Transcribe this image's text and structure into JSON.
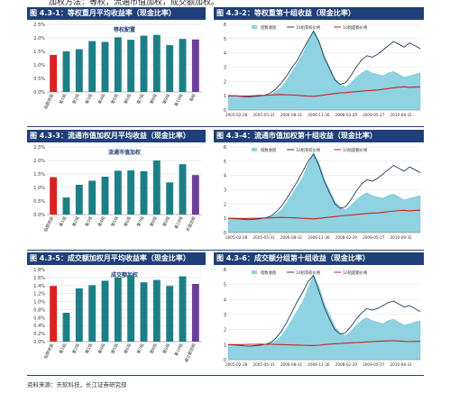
{
  "header_text": "加权方法：等权，流通市值加权，成交额加权。",
  "footer": "资料来源：天软科技，长江证券研究部",
  "legend_labels": {
    "index": "指数收盘",
    "top10_equal": "10组等权价格",
    "top10_excess": "10组超额价格"
  },
  "colors": {
    "bar_teal": "#1d7f86",
    "bar_red": "#e02020",
    "bar_purple": "#6a3d9a",
    "title_bg": "#1f3f78",
    "area_fill": "#8fd3e2",
    "line_dark": "#233b5a",
    "line_red": "#cc1f1f"
  },
  "x_date_ticks": [
    "2005-02-28",
    "2005-05-31",
    "2006-08-31",
    "2006-11-30",
    "2008-02-29",
    "2009-05-27",
    "2010-08-31"
  ],
  "chart_data": [
    {
      "id": "c1",
      "type": "bar",
      "title": "图 4.3-1：等权重月平均收益率（现金比率）",
      "inner_title": "等权配置",
      "ylim": [
        0,
        0.025
      ],
      "yticks": [
        "0.0%",
        "0.5%",
        "1.0%",
        "1.5%",
        "2.0%",
        "2.5%"
      ],
      "categories": [
        "指数收益",
        "第1组",
        "第2组",
        "第3组",
        "第4组",
        "第5组",
        "第6组",
        "第7组",
        "第8组",
        "第9组",
        "第10组",
        "等权"
      ],
      "values": [
        0.0137,
        0.015,
        0.0158,
        0.0188,
        0.0185,
        0.0202,
        0.0193,
        0.0208,
        0.0211,
        0.0173,
        0.0196,
        0.0194
      ],
      "bar_colors": [
        "red",
        "teal",
        "teal",
        "teal",
        "teal",
        "teal",
        "teal",
        "teal",
        "teal",
        "teal",
        "teal",
        "purple"
      ]
    },
    {
      "id": "c2",
      "type": "area_line",
      "title": "图 4.3-2：等权重第十组收益（现金比率）",
      "ylim": [
        0,
        6
      ],
      "yticks": [
        "0",
        "1",
        "2",
        "3",
        "4",
        "5",
        "6"
      ],
      "index": [
        1.0,
        0.98,
        0.95,
        0.9,
        0.88,
        0.92,
        0.95,
        1.0,
        1.1,
        1.3,
        1.6,
        2.1,
        2.7,
        3.3,
        3.9,
        4.8,
        5.6,
        4.9,
        3.8,
        3.0,
        2.2,
        1.8,
        1.6,
        1.9,
        2.3,
        2.6,
        2.8,
        2.6,
        2.5,
        2.4,
        2.6,
        2.7,
        2.5,
        2.3,
        2.4,
        2.5,
        2.6
      ],
      "top10_equal": [
        1.0,
        0.98,
        0.97,
        0.93,
        0.92,
        0.95,
        0.98,
        1.05,
        1.2,
        1.5,
        1.9,
        2.4,
        3.0,
        3.5,
        4.2,
        4.9,
        5.5,
        4.8,
        3.7,
        2.9,
        2.1,
        1.8,
        1.9,
        2.4,
        3.0,
        3.5,
        3.8,
        3.7,
        3.9,
        4.2,
        4.5,
        4.8,
        4.6,
        4.4,
        4.7,
        4.5,
        4.3
      ],
      "top10_excess": [
        1.0,
        1.0,
        0.98,
        0.97,
        0.98,
        1.0,
        1.02,
        1.03,
        1.05,
        1.07,
        1.08,
        1.06,
        1.05,
        1.03,
        1.0,
        0.97,
        0.95,
        1.0,
        1.05,
        1.1,
        1.15,
        1.2,
        1.22,
        1.25,
        1.28,
        1.32,
        1.35,
        1.38,
        1.4,
        1.45,
        1.5,
        1.55,
        1.6,
        1.62,
        1.58,
        1.6,
        1.62
      ]
    },
    {
      "id": "c3",
      "type": "bar",
      "title": "图 4.3-3：流通市值加权月平均收益（现金比率）",
      "inner_title": "流通市值加权",
      "ylim": [
        0,
        0.025
      ],
      "yticks": [
        "0.0%",
        "0.5%",
        "1.0%",
        "1.5%",
        "2.0%",
        "2.5%"
      ],
      "categories": [
        "指数收益",
        "第1组",
        "第2组",
        "第3组",
        "第4组",
        "第5组",
        "第6组",
        "第7组",
        "第8组",
        "第9组",
        "第10组",
        "市值加权"
      ],
      "values": [
        0.0138,
        0.0063,
        0.011,
        0.0125,
        0.014,
        0.0162,
        0.0163,
        0.016,
        0.02,
        0.0119,
        0.0186,
        0.0146
      ],
      "bar_colors": [
        "red",
        "teal",
        "teal",
        "teal",
        "teal",
        "teal",
        "teal",
        "teal",
        "teal",
        "teal",
        "teal",
        "purple"
      ]
    },
    {
      "id": "c4",
      "type": "area_line",
      "title": "图 4.3-4：流通市值加权第十组收益（现金比率）",
      "ylim": [
        0,
        6
      ],
      "yticks": [
        "0",
        "1",
        "2",
        "3",
        "4",
        "5",
        "6"
      ],
      "index": [
        1.0,
        0.98,
        0.95,
        0.9,
        0.88,
        0.92,
        0.95,
        1.0,
        1.1,
        1.3,
        1.6,
        2.1,
        2.7,
        3.3,
        3.9,
        4.8,
        5.6,
        4.9,
        3.8,
        3.0,
        2.2,
        1.8,
        1.6,
        1.9,
        2.3,
        2.6,
        2.8,
        2.6,
        2.5,
        2.4,
        2.6,
        2.7,
        2.5,
        2.3,
        2.4,
        2.5,
        2.6
      ],
      "top10_equal": [
        1.0,
        0.97,
        0.95,
        0.92,
        0.9,
        0.94,
        0.97,
        1.03,
        1.15,
        1.45,
        1.85,
        2.4,
        3.0,
        3.6,
        4.3,
        5.0,
        5.5,
        4.7,
        3.6,
        2.8,
        2.0,
        1.7,
        1.8,
        2.3,
        2.9,
        3.4,
        3.7,
        3.6,
        3.8,
        4.1,
        4.4,
        4.7,
        4.5,
        4.3,
        4.6,
        4.4,
        4.2
      ],
      "top10_excess": [
        1.0,
        1.0,
        0.99,
        0.98,
        0.99,
        1.0,
        1.01,
        1.02,
        1.03,
        1.05,
        1.06,
        1.05,
        1.04,
        1.02,
        1.0,
        0.98,
        0.96,
        1.0,
        1.04,
        1.08,
        1.12,
        1.16,
        1.2,
        1.23,
        1.26,
        1.3,
        1.33,
        1.36,
        1.38,
        1.42,
        1.46,
        1.5,
        1.54,
        1.56,
        1.52,
        1.55,
        1.57
      ]
    },
    {
      "id": "c5",
      "type": "bar",
      "title": "图 4.3-5：成交额加权月平均收益率（现金比率）",
      "inner_title": "成交额加权",
      "ylim": [
        0,
        0.018
      ],
      "yticks": [
        "0.0%",
        "0.2%",
        "0.4%",
        "0.6%",
        "0.8%",
        "1.0%",
        "1.2%",
        "1.4%",
        "1.6%",
        "1.8%"
      ],
      "categories": [
        "指数收益",
        "第1组",
        "第2组",
        "第3组",
        "第4组",
        "第5组",
        "第6组",
        "第7组",
        "第8组",
        "第9组",
        "第10组",
        "成交额加权"
      ],
      "values": [
        0.0139,
        0.0072,
        0.0133,
        0.0141,
        0.0152,
        0.016,
        0.0166,
        0.0148,
        0.0154,
        0.0139,
        0.0163,
        0.0144
      ],
      "bar_colors": [
        "red",
        "teal",
        "teal",
        "teal",
        "teal",
        "teal",
        "teal",
        "teal",
        "teal",
        "teal",
        "teal",
        "purple"
      ]
    },
    {
      "id": "c6",
      "type": "area_line",
      "title": "图 4.3-6：成交额分组第十组收益（现金比率）",
      "ylim": [
        0,
        6
      ],
      "yticks": [
        "0",
        "1",
        "2",
        "3",
        "4",
        "5",
        "6"
      ],
      "index": [
        1.0,
        0.98,
        0.95,
        0.9,
        0.88,
        0.92,
        0.95,
        1.0,
        1.1,
        1.3,
        1.6,
        2.1,
        2.7,
        3.3,
        3.9,
        4.8,
        5.6,
        4.9,
        3.8,
        3.0,
        2.2,
        1.8,
        1.6,
        1.9,
        2.3,
        2.6,
        2.8,
        2.6,
        2.5,
        2.4,
        2.6,
        2.7,
        2.5,
        2.3,
        2.4,
        2.5,
        2.6
      ],
      "top10_equal": [
        1.0,
        0.98,
        0.96,
        0.92,
        0.9,
        0.93,
        0.96,
        1.02,
        1.15,
        1.45,
        1.9,
        2.5,
        3.2,
        3.9,
        4.5,
        5.2,
        5.6,
        4.6,
        3.5,
        2.7,
        2.0,
        1.7,
        1.8,
        2.2,
        2.7,
        3.1,
        3.4,
        3.3,
        3.4,
        3.6,
        3.8,
        3.9,
        3.7,
        3.5,
        3.6,
        3.4,
        3.2
      ],
      "top10_excess": [
        1.0,
        1.0,
        1.0,
        1.01,
        1.02,
        1.02,
        1.03,
        1.02,
        1.02,
        1.01,
        1.0,
        0.99,
        0.98,
        0.97,
        0.96,
        0.95,
        0.94,
        0.96,
        1.0,
        1.03,
        1.06,
        1.08,
        1.1,
        1.12,
        1.14,
        1.16,
        1.18,
        1.2,
        1.22,
        1.24,
        1.25,
        1.26,
        1.24,
        1.22,
        1.2,
        1.21,
        1.22
      ]
    }
  ]
}
